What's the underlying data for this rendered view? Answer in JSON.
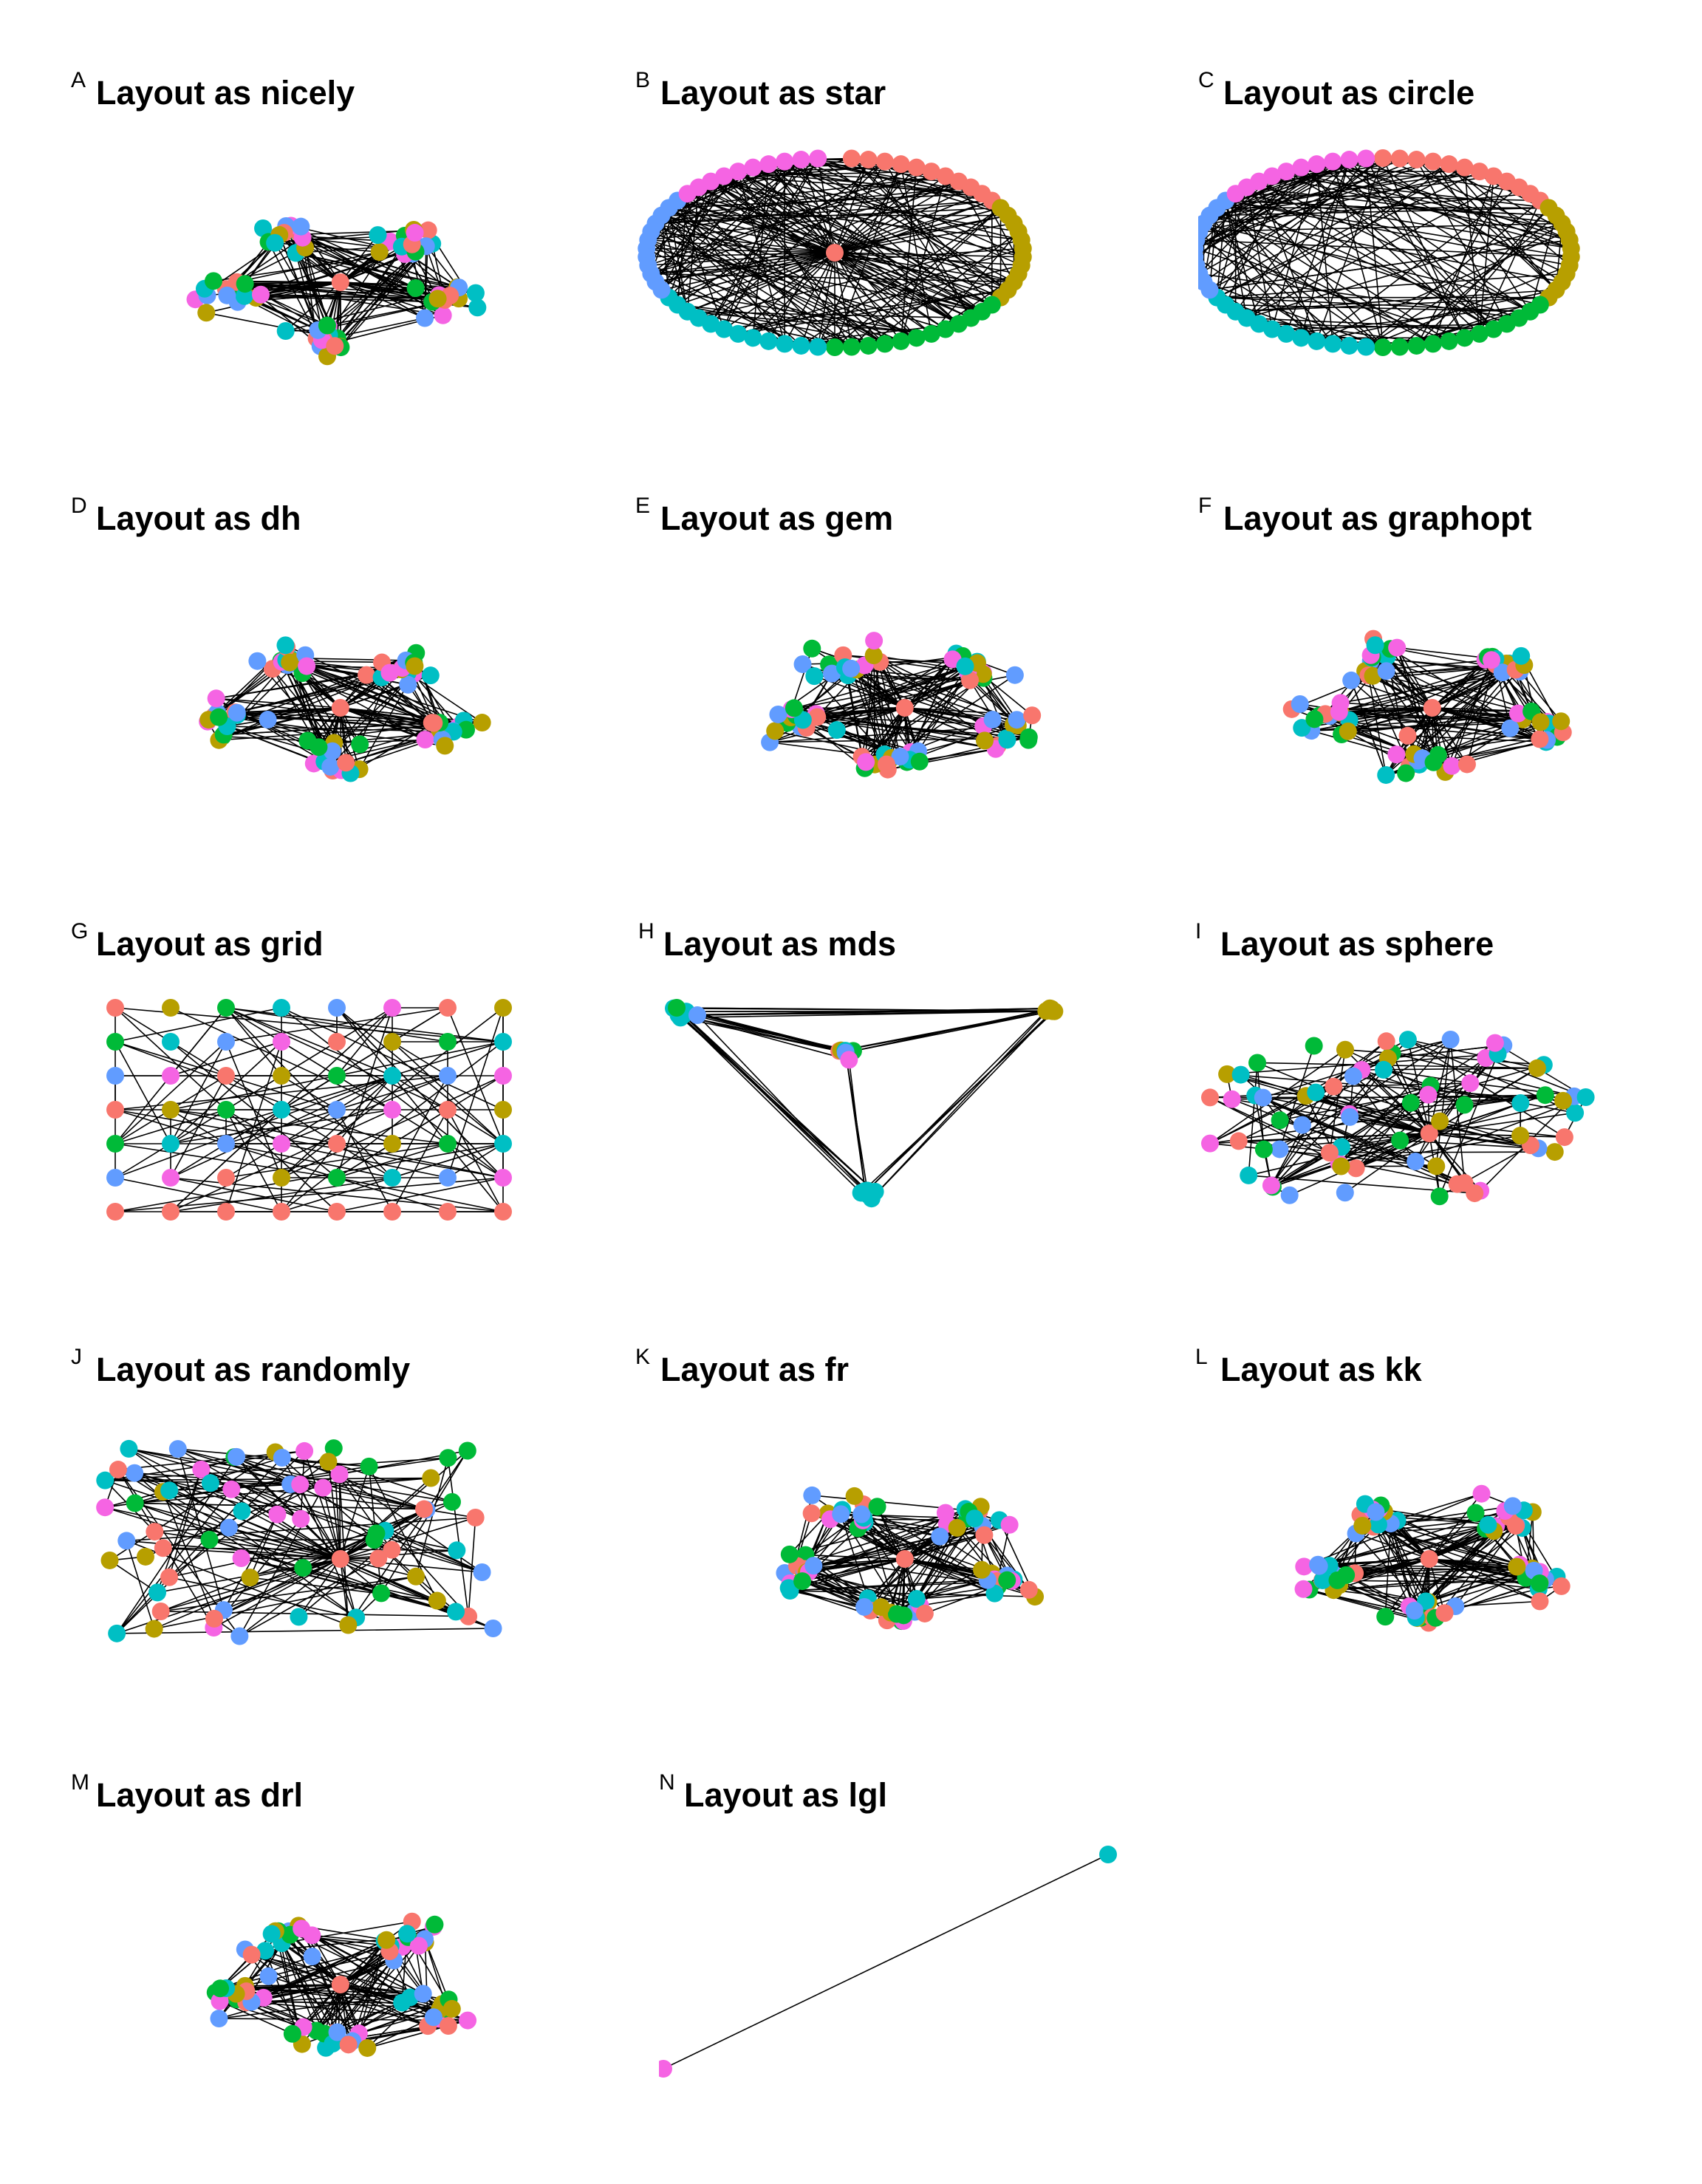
{
  "palette": {
    "salmon": "#F8766D",
    "olive": "#B79F00",
    "green": "#00BA38",
    "cyan": "#00BFC4",
    "blue": "#619CFF",
    "pink": "#F564E3"
  },
  "panels": [
    {
      "letter": "A",
      "title": "Layout as nicely",
      "layout": "nicely"
    },
    {
      "letter": "B",
      "title": "Layout as star",
      "layout": "star"
    },
    {
      "letter": "C",
      "title": "Layout as circle",
      "layout": "circle"
    },
    {
      "letter": "D",
      "title": "Layout as dh",
      "layout": "dh"
    },
    {
      "letter": "E",
      "title": "Layout as gem",
      "layout": "gem"
    },
    {
      "letter": "F",
      "title": "Layout as graphopt",
      "layout": "graphopt"
    },
    {
      "letter": "G",
      "title": "Layout as grid",
      "layout": "grid"
    },
    {
      "letter": "H",
      "title": "Layout as mds",
      "layout": "mds"
    },
    {
      "letter": "I",
      "title": "Layout as sphere",
      "layout": "sphere"
    },
    {
      "letter": "J",
      "title": "Layout as randomly",
      "layout": "randomly"
    },
    {
      "letter": "K",
      "title": "Layout as fr",
      "layout": "fr"
    },
    {
      "letter": "L",
      "title": "Layout as kk",
      "layout": "kk"
    },
    {
      "letter": "M",
      "title": "Layout as drl",
      "layout": "drl"
    },
    {
      "letter": "N",
      "title": "Layout as lgl",
      "layout": "lgl"
    }
  ]
}
